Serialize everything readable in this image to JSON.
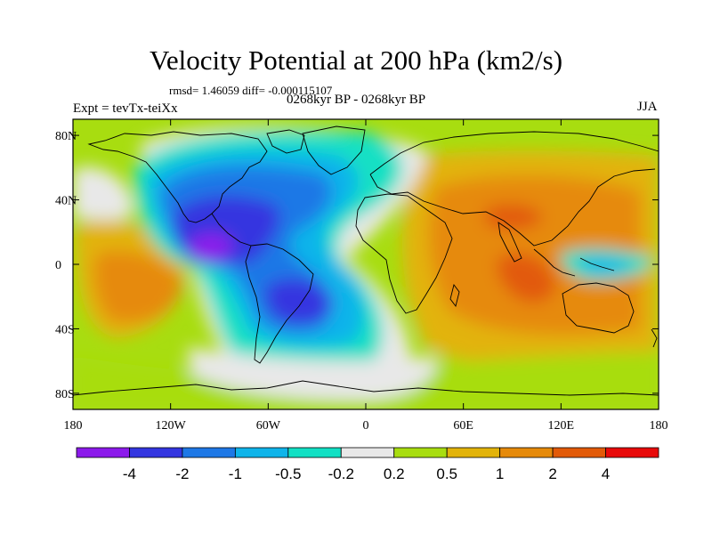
{
  "title": "Velocity Potential at 200 hPa (km2/s)",
  "stats": "rmsd= 1.46059 diff= -0.000115107",
  "left_label": "Expt = tevTx-teiXx",
  "center_label": "0268kyr BP - 0268kyr BP",
  "right_label": "JJA",
  "map": {
    "lon_range": [
      -180,
      180
    ],
    "lat_range": [
      -90,
      90
    ],
    "lon_ticks": [
      {
        "value": -180,
        "label": "180"
      },
      {
        "value": -120,
        "label": "120W"
      },
      {
        "value": -60,
        "label": "60W"
      },
      {
        "value": 0,
        "label": "0"
      },
      {
        "value": 60,
        "label": "60E"
      },
      {
        "value": 120,
        "label": "120E"
      },
      {
        "value": 180,
        "label": "180"
      }
    ],
    "lat_ticks": [
      {
        "value": 80,
        "label": "80N"
      },
      {
        "value": 40,
        "label": "40N"
      },
      {
        "value": 0,
        "label": "0"
      },
      {
        "value": -40,
        "label": "40S"
      },
      {
        "value": -80,
        "label": "80S"
      }
    ]
  },
  "colorbar": {
    "colors": [
      "#8c1aeb",
      "#3436e0",
      "#1e78e6",
      "#0fb4ea",
      "#12e0c4",
      "#e8e8e8",
      "#a8dd10",
      "#e2b30a",
      "#e68a0a",
      "#e25a08",
      "#e80a0a"
    ],
    "labels": [
      "-4",
      "-2",
      "-1",
      "-0.5",
      "-0.2",
      "0.2",
      "0.5",
      "1",
      "2",
      "4"
    ]
  }
}
